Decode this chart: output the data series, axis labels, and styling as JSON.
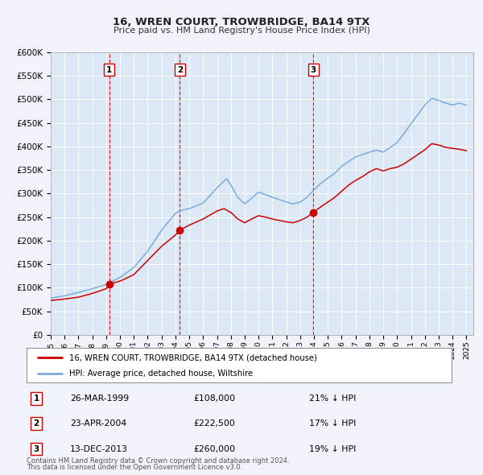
{
  "title": "16, WREN COURT, TROWBRIDGE, BA14 9TX",
  "subtitle": "Price paid vs. HM Land Registry's House Price Index (HPI)",
  "ylim": [
    0,
    600000
  ],
  "yticks": [
    0,
    50000,
    100000,
    150000,
    200000,
    250000,
    300000,
    350000,
    400000,
    450000,
    500000,
    550000,
    600000
  ],
  "ytick_labels": [
    "£0",
    "£50K",
    "£100K",
    "£150K",
    "£200K",
    "£250K",
    "£300K",
    "£350K",
    "£400K",
    "£450K",
    "£500K",
    "£550K",
    "£600K"
  ],
  "xlim_start": 1995.0,
  "xlim_end": 2025.5,
  "background_color": "#f0f4fa",
  "plot_bg_color": "#dce8f5",
  "grid_color": "#c8d8ea",
  "house_color": "#cc0000",
  "hpi_color": "#7aacdc",
  "sale_points": [
    {
      "year": 1999.23,
      "price": 108000,
      "label": "1"
    },
    {
      "year": 2004.31,
      "price": 222500,
      "label": "2"
    },
    {
      "year": 2013.95,
      "price": 260000,
      "label": "3"
    }
  ],
  "vline_years": [
    1999.23,
    2004.31,
    2013.95
  ],
  "legend_house": "16, WREN COURT, TROWBRIDGE, BA14 9TX (detached house)",
  "legend_hpi": "HPI: Average price, detached house, Wiltshire",
  "table_rows": [
    {
      "num": "1",
      "date": "26-MAR-1999",
      "price": "£108,000",
      "pct": "21% ↓ HPI"
    },
    {
      "num": "2",
      "date": "23-APR-2004",
      "price": "£222,500",
      "pct": "17% ↓ HPI"
    },
    {
      "num": "3",
      "date": "13-DEC-2013",
      "price": "£260,000",
      "pct": "19% ↓ HPI"
    }
  ],
  "footnote1": "Contains HM Land Registry data © Crown copyright and database right 2024.",
  "footnote2": "This data is licensed under the Open Government Licence v3.0.",
  "hpi_anchors": [
    [
      1995.0,
      78000
    ],
    [
      1996.0,
      83000
    ],
    [
      1997.0,
      90000
    ],
    [
      1998.0,
      98000
    ],
    [
      1999.0,
      107000
    ],
    [
      2000.0,
      122000
    ],
    [
      2001.0,
      143000
    ],
    [
      2002.0,
      178000
    ],
    [
      2003.0,
      222000
    ],
    [
      2004.0,
      258000
    ],
    [
      2004.5,
      265000
    ],
    [
      2005.0,
      268000
    ],
    [
      2006.0,
      280000
    ],
    [
      2007.0,
      312000
    ],
    [
      2007.7,
      332000
    ],
    [
      2008.0,
      318000
    ],
    [
      2008.5,
      292000
    ],
    [
      2009.0,
      278000
    ],
    [
      2009.5,
      290000
    ],
    [
      2010.0,
      303000
    ],
    [
      2010.5,
      298000
    ],
    [
      2011.0,
      292000
    ],
    [
      2011.5,
      287000
    ],
    [
      2012.0,
      282000
    ],
    [
      2012.5,
      278000
    ],
    [
      2013.0,
      282000
    ],
    [
      2013.5,
      292000
    ],
    [
      2014.0,
      308000
    ],
    [
      2014.5,
      322000
    ],
    [
      2015.0,
      333000
    ],
    [
      2015.5,
      343000
    ],
    [
      2016.0,
      358000
    ],
    [
      2016.5,
      368000
    ],
    [
      2017.0,
      378000
    ],
    [
      2017.5,
      383000
    ],
    [
      2018.0,
      388000
    ],
    [
      2018.5,
      392000
    ],
    [
      2019.0,
      388000
    ],
    [
      2019.5,
      398000
    ],
    [
      2020.0,
      408000
    ],
    [
      2020.5,
      428000
    ],
    [
      2021.0,
      448000
    ],
    [
      2021.5,
      468000
    ],
    [
      2022.0,
      488000
    ],
    [
      2022.5,
      502000
    ],
    [
      2023.0,
      498000
    ],
    [
      2023.5,
      492000
    ],
    [
      2024.0,
      488000
    ],
    [
      2024.5,
      492000
    ],
    [
      2025.0,
      488000
    ]
  ],
  "house_anchors": [
    [
      1995.0,
      73000
    ],
    [
      1996.0,
      76000
    ],
    [
      1997.0,
      80000
    ],
    [
      1998.0,
      88000
    ],
    [
      1999.0,
      98000
    ],
    [
      1999.23,
      108000
    ],
    [
      2000.0,
      114000
    ],
    [
      2001.0,
      128000
    ],
    [
      2002.0,
      158000
    ],
    [
      2003.0,
      188000
    ],
    [
      2004.0,
      212000
    ],
    [
      2004.31,
      222500
    ],
    [
      2005.0,
      233000
    ],
    [
      2006.0,
      246000
    ],
    [
      2007.0,
      263000
    ],
    [
      2007.5,
      268000
    ],
    [
      2008.0,
      260000
    ],
    [
      2008.5,
      246000
    ],
    [
      2009.0,
      238000
    ],
    [
      2009.5,
      246000
    ],
    [
      2010.0,
      253000
    ],
    [
      2010.5,
      250000
    ],
    [
      2011.0,
      246000
    ],
    [
      2011.5,
      243000
    ],
    [
      2012.0,
      240000
    ],
    [
      2012.5,
      238000
    ],
    [
      2013.0,
      243000
    ],
    [
      2013.5,
      250000
    ],
    [
      2013.95,
      260000
    ],
    [
      2014.0,
      261000
    ],
    [
      2014.5,
      272000
    ],
    [
      2015.0,
      282000
    ],
    [
      2015.5,
      292000
    ],
    [
      2016.0,
      305000
    ],
    [
      2016.5,
      318000
    ],
    [
      2017.0,
      328000
    ],
    [
      2017.5,
      336000
    ],
    [
      2018.0,
      346000
    ],
    [
      2018.5,
      353000
    ],
    [
      2019.0,
      348000
    ],
    [
      2019.5,
      353000
    ],
    [
      2020.0,
      356000
    ],
    [
      2020.5,
      363000
    ],
    [
      2021.0,
      373000
    ],
    [
      2021.5,
      383000
    ],
    [
      2022.0,
      393000
    ],
    [
      2022.5,
      406000
    ],
    [
      2023.0,
      403000
    ],
    [
      2023.5,
      398000
    ],
    [
      2024.0,
      396000
    ],
    [
      2024.5,
      394000
    ],
    [
      2025.0,
      391000
    ]
  ]
}
